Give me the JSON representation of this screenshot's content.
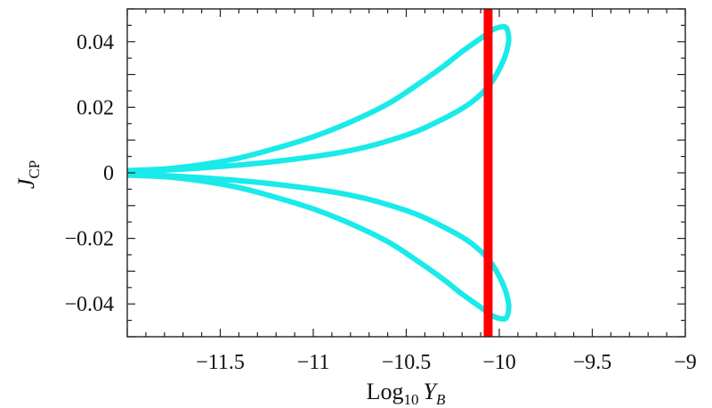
{
  "chart_data": {
    "type": "line",
    "title": "",
    "xlabel": {
      "prefix": "Log",
      "sub": "10",
      "var": "Y",
      "var_sub": "B"
    },
    "ylabel": {
      "var": "J",
      "sub": "CP"
    },
    "xlim": [
      -12.0,
      -9.0
    ],
    "ylim": [
      -0.05,
      0.05
    ],
    "x_ticks": [
      -11.5,
      -11,
      -10.5,
      -10,
      -9.5,
      -9
    ],
    "x_tick_labels": [
      "−11.5",
      "−11",
      "−10.5",
      "−10",
      "−9.5",
      "−9"
    ],
    "y_ticks": [
      0.04,
      0.02,
      0,
      -0.02,
      -0.04
    ],
    "y_tick_labels": [
      "0.04",
      "0.02",
      "0",
      "−0.02",
      "−0.04"
    ],
    "grid": false,
    "series": [
      {
        "color": "#19eaea",
        "points": [
          [
            -12.0,
            0.0007
          ],
          [
            -11.8,
            0.0012
          ],
          [
            -11.6,
            0.0025
          ],
          [
            -11.4,
            0.0045
          ],
          [
            -11.2,
            0.0075
          ],
          [
            -11.0,
            0.011
          ],
          [
            -10.8,
            0.0155
          ],
          [
            -10.6,
            0.021
          ],
          [
            -10.45,
            0.0265
          ],
          [
            -10.3,
            0.0325
          ],
          [
            -10.2,
            0.037
          ],
          [
            -10.1,
            0.041
          ],
          [
            -10.04,
            0.0435
          ],
          [
            -9.99,
            0.0445
          ],
          [
            -9.96,
            0.044
          ],
          [
            -9.95,
            0.04
          ],
          [
            -9.98,
            0.034
          ],
          [
            -10.05,
            0.027
          ],
          [
            -10.15,
            0.0215
          ],
          [
            -10.3,
            0.0165
          ],
          [
            -10.5,
            0.0115
          ],
          [
            -10.8,
            0.0068
          ],
          [
            -11.2,
            0.0035
          ],
          [
            -11.6,
            0.0015
          ],
          [
            -12.0,
            0.0003
          ]
        ]
      },
      {
        "color": "#19eaea",
        "points": [
          [
            -12.0,
            -0.0003
          ],
          [
            -11.6,
            -0.0015
          ],
          [
            -11.2,
            -0.0035
          ],
          [
            -10.8,
            -0.0068
          ],
          [
            -10.5,
            -0.0115
          ],
          [
            -10.3,
            -0.0165
          ],
          [
            -10.15,
            -0.0215
          ],
          [
            -10.05,
            -0.027
          ],
          [
            -9.98,
            -0.034
          ],
          [
            -9.95,
            -0.04
          ],
          [
            -9.96,
            -0.044
          ],
          [
            -9.99,
            -0.0445
          ],
          [
            -10.04,
            -0.0435
          ],
          [
            -10.1,
            -0.041
          ],
          [
            -10.2,
            -0.037
          ],
          [
            -10.3,
            -0.0325
          ],
          [
            -10.45,
            -0.0265
          ],
          [
            -10.6,
            -0.021
          ],
          [
            -10.8,
            -0.0155
          ],
          [
            -11.0,
            -0.011
          ],
          [
            -11.2,
            -0.0075
          ],
          [
            -11.4,
            -0.0045
          ],
          [
            -11.6,
            -0.0025
          ],
          [
            -11.8,
            -0.0012
          ],
          [
            -12.0,
            -0.0007
          ]
        ]
      }
    ],
    "vertical_band": {
      "x": -10.06,
      "color": "#ff0000"
    }
  }
}
